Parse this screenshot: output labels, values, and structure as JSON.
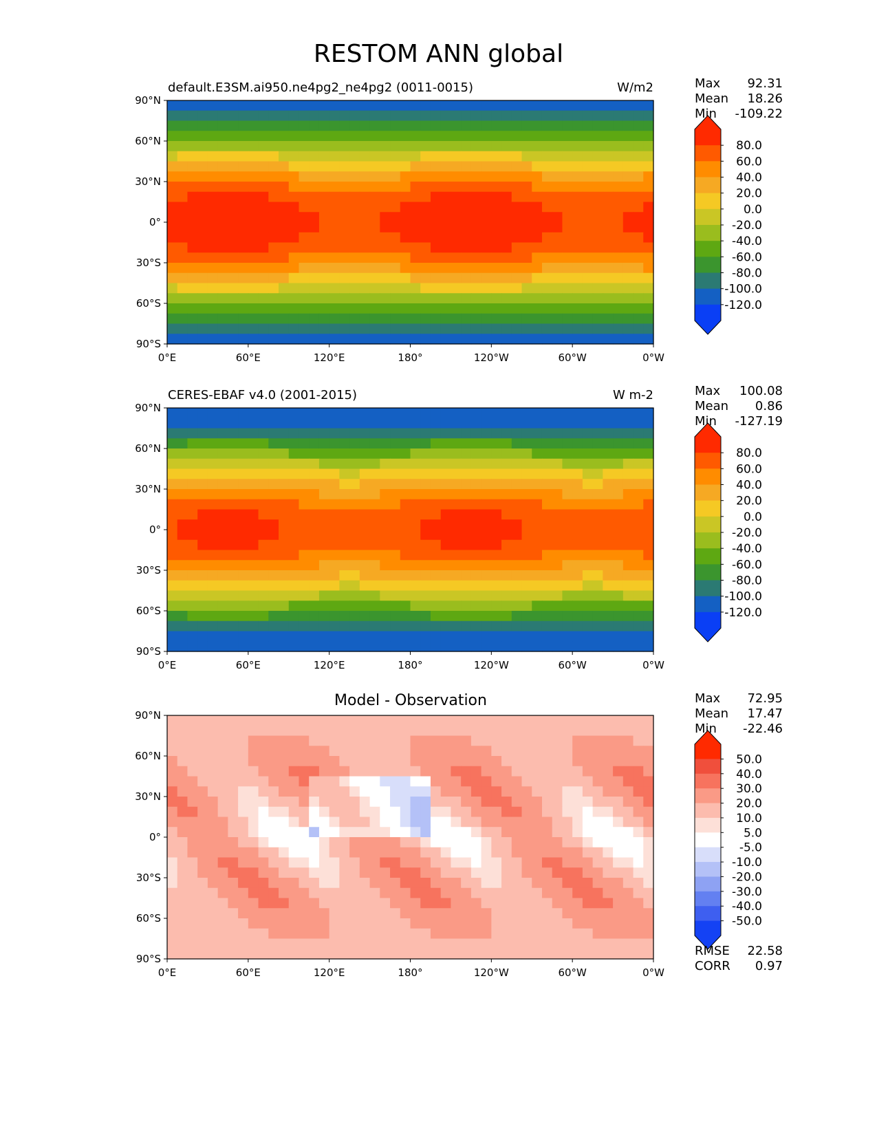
{
  "figure": {
    "title": "RESTOM ANN global"
  },
  "chart_data": [
    {
      "type": "heatmap",
      "panel": "test",
      "title": "default.E3SM.ai950.ne4pg2_ne4pg2 (0011-0015)",
      "units": "W/m2",
      "stats": {
        "max": "92.31",
        "mean": "18.26",
        "min": "-109.22"
      },
      "x_ticks": [
        "0°E",
        "60°E",
        "120°E",
        "180°",
        "120°W",
        "60°W",
        "0°W"
      ],
      "y_ticks": [
        "90°N",
        "60°N",
        "30°N",
        "0°",
        "30°S",
        "60°S",
        "90°S"
      ],
      "colorbar_labels": [
        "80.0",
        "60.0",
        "40.0",
        "20.0",
        "0.0",
        "-20.0",
        "-40.0",
        "-60.0",
        "-80.0",
        "-100.0",
        "-120.0"
      ],
      "colorbar_colors": [
        "#ff2a00",
        "#ff5a00",
        "#ff8c00",
        "#f6a923",
        "#f5c924",
        "#cac625",
        "#9abd1e",
        "#5ea812",
        "#3b952e",
        "#2b7a73",
        "#1460c3",
        "#0a3ff5"
      ]
    },
    {
      "type": "heatmap",
      "panel": "reference",
      "title": "CERES-EBAF v4.0 (2001-2015)",
      "units": "W m-2",
      "stats": {
        "max": "100.08",
        "mean": "0.86",
        "min": "-127.19"
      },
      "x_ticks": [
        "0°E",
        "60°E",
        "120°E",
        "180°",
        "120°W",
        "60°W",
        "0°W"
      ],
      "y_ticks": [
        "90°N",
        "60°N",
        "30°N",
        "0°",
        "30°S",
        "60°S",
        "90°S"
      ],
      "colorbar_labels": [
        "80.0",
        "60.0",
        "40.0",
        "20.0",
        "0.0",
        "-20.0",
        "-40.0",
        "-60.0",
        "-80.0",
        "-100.0",
        "-120.0"
      ],
      "colorbar_colors": [
        "#ff2a00",
        "#ff5a00",
        "#ff8c00",
        "#f6a923",
        "#f5c924",
        "#cac625",
        "#9abd1e",
        "#5ea812",
        "#3b952e",
        "#2b7a73",
        "#1460c3",
        "#0a3ff5"
      ]
    },
    {
      "type": "heatmap",
      "panel": "difference",
      "title": "Model - Observation",
      "units": "",
      "stats": {
        "max": "72.95",
        "mean": "17.47",
        "min": "-22.46"
      },
      "x_ticks": [
        "0°E",
        "60°E",
        "120°E",
        "180°",
        "120°W",
        "60°W",
        "0°W"
      ],
      "y_ticks": [
        "90°N",
        "60°N",
        "30°N",
        "0°",
        "30°S",
        "60°S",
        "90°S"
      ],
      "colorbar_labels": [
        "50.0",
        "40.0",
        "30.0",
        "20.0",
        "10.0",
        "5.0",
        "-5.0",
        "-10.0",
        "-20.0",
        "-30.0",
        "-40.0",
        "-50.0"
      ],
      "colorbar_colors": [
        "#ff2a00",
        "#f04f3c",
        "#f7735e",
        "#fa9a86",
        "#fcbcae",
        "#fde0d8",
        "#ffffff",
        "#d8defa",
        "#b4c1f7",
        "#8ea2f3",
        "#6380f1",
        "#3e5ff0",
        "#1442f4"
      ],
      "rmse": "22.58",
      "corr": "0.97"
    }
  ],
  "labels": {
    "max": "Max",
    "mean": "Mean",
    "min": "Min",
    "rmse": "RMSE",
    "corr": "CORR"
  }
}
